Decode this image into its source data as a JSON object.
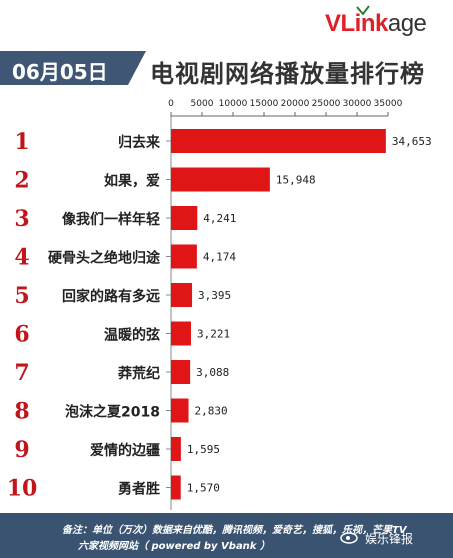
{
  "header": {
    "date": "06月05日",
    "title": "电视剧网络播放量排行榜",
    "logo_v": "VL",
    "logo_ink": "ink",
    "logo_age": "age"
  },
  "colors": {
    "bar": "#e01515",
    "rank": "#c0161b",
    "header_bg": "#3f5775",
    "footer_bg": "#3a5371"
  },
  "chart_data": {
    "type": "bar",
    "orientation": "horizontal",
    "title": "电视剧网络播放量排行榜",
    "x_ticks": [
      "0",
      "5000",
      "10000",
      "15000",
      "20000",
      "25000",
      "30000",
      "35000"
    ],
    "xlim": [
      0,
      35000
    ],
    "axis_position": "top",
    "grid": false,
    "ranks": [
      "1",
      "2",
      "3",
      "4",
      "5",
      "6",
      "7",
      "8",
      "9",
      "10"
    ],
    "categories": [
      "归去来",
      "如果，爱",
      "像我们一样年轻",
      "硬骨头之绝地归途",
      "回家的路有多远",
      "温暖的弦",
      "莽荒纪",
      "泡沫之夏2018",
      "爱情的边疆",
      "勇者胜"
    ],
    "values": [
      34653,
      15948,
      4241,
      4174,
      3395,
      3221,
      3088,
      2830,
      1595,
      1570
    ],
    "value_labels": [
      "34,653",
      "15,948",
      "4,241",
      "4,174",
      "3,395",
      "3,221",
      "3,088",
      "2,830",
      "1,595",
      "1,570"
    ]
  },
  "footer": {
    "line1": "备注：单位（万次）数据来自优酷，腾讯视频，爱奇艺，搜狐，乐视，芒果TV",
    "line2": "六家视频网站（ powered by Vbank ）",
    "watermark": "娱乐锋报",
    "watermark_faint": "@VLinkag"
  }
}
